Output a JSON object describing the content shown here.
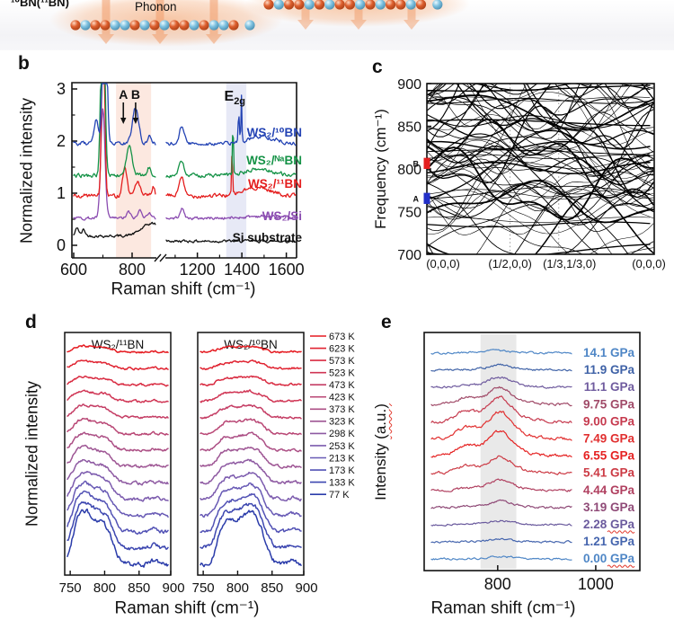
{
  "figure": {
    "panel_labels": {
      "b": "b",
      "c": "c",
      "d": "d",
      "e": "e"
    },
    "schematic": {
      "corner_label": "¹⁰BN(¹¹BN)",
      "phonon_label": "Phonon",
      "atom_colors": {
        "orange": "#dd5f2e",
        "blue": "#7fc2e0"
      },
      "arrow_color": "#f29e6c",
      "glow_color": "#f6aa76",
      "left_chain_pattern": [
        "o",
        "b",
        "o",
        "o",
        "b",
        "b",
        "o",
        "b",
        "o",
        "b",
        "o",
        "o",
        "b",
        "o",
        "b",
        "b",
        "o",
        "b"
      ],
      "right_chain_pattern": [
        "o",
        "b",
        "o",
        "o",
        "b",
        "o",
        "b",
        "o",
        "o",
        "b",
        "o",
        "b",
        "o",
        "o",
        "b",
        "o",
        "b"
      ]
    }
  },
  "chart_data": [
    {
      "id": "b",
      "type": "line",
      "xlabel": "Raman shift (cm⁻¹)",
      "ylabel": "Normalized intensity",
      "yticks": [
        0,
        1,
        2,
        3
      ],
      "xticks_seg1": [
        600,
        800
      ],
      "xticks_seg2": [
        1200,
        1400,
        1600
      ],
      "minor_xticks_seg1": [
        700
      ],
      "minor_xticks_seg2": [
        1100,
        1300,
        1500
      ],
      "xlim_seg1": [
        600,
        880
      ],
      "xlim_seg2": [
        1060,
        1646
      ],
      "ylim": [
        -0.3,
        3.12
      ],
      "axis_break": true,
      "shaded_bands": [
        {
          "range": [
            745,
            865
          ],
          "color": "rgba(246,180,152,0.30)"
        },
        {
          "range": [
            1330,
            1420
          ],
          "color": "rgba(185,192,228,0.35)"
        }
      ],
      "annotations": {
        "a_label": "A",
        "a_x": 770,
        "b_label": "B",
        "b_x": 812,
        "e2g_base": "E",
        "e2g_sub": "2g",
        "e2g_x": 1345
      },
      "series": [
        {
          "name": "Si substrate",
          "color": "#111111",
          "offset": 0.18,
          "offset_seg2": 0.08,
          "noise": 0.02,
          "peaks": [
            [
              612,
              8,
              0.16
            ],
            [
              634,
              8,
              0.12
            ],
            [
              870,
              50,
              0.24
            ]
          ]
        },
        {
          "name": "WS₂/Si",
          "color": "#8a4bb0",
          "offset": 0.52,
          "offset_seg2": 0.52,
          "noise": 0.022,
          "peaks": [
            [
              700,
              10,
              2.1
            ],
            [
              788,
              9,
              0.12
            ],
            [
              828,
              10,
              0.16
            ],
            [
              858,
              8,
              0.12
            ],
            [
              1130,
              14,
              0.18
            ],
            [
              1480,
              90,
              0.04
            ]
          ]
        },
        {
          "name": "WS₂/¹¹BN",
          "color": "#e41d1d",
          "offset": 0.95,
          "offset_seg2": 0.95,
          "noise": 0.03,
          "peaks": [
            [
              701,
              7,
              4
            ],
            [
              775,
              11,
              0.55
            ],
            [
              818,
              12,
              0.28
            ],
            [
              872,
              7,
              0.16
            ],
            [
              1128,
              15,
              0.37
            ],
            [
              1356,
              3,
              0.88
            ],
            [
              1470,
              85,
              0.16
            ]
          ]
        },
        {
          "name": "WS₂/ᴺᵃBN",
          "color": "#149246",
          "offset": 1.34,
          "offset_seg2": 1.34,
          "noise": 0.028,
          "peaks": [
            [
              700,
              9,
              4
            ],
            [
              790,
              14,
              0.55
            ],
            [
              858,
              7,
              0.15
            ],
            [
              1128,
              15,
              0.27
            ],
            [
              1360,
              3.2,
              1.0
            ],
            [
              1480,
              85,
              0.12
            ]
          ]
        },
        {
          "name": "WS₂/¹⁰BN",
          "color": "#2343b4",
          "offset": 1.95,
          "offset_seg2": 1.95,
          "noise": 0.028,
          "peaks": [
            [
              706,
              9,
              4
            ],
            [
              678,
              10,
              0.45
            ],
            [
              812,
              15,
              0.7
            ],
            [
              860,
              7,
              0.18
            ],
            [
              1130,
              15,
              0.36
            ],
            [
              1386,
              4,
              0.5
            ],
            [
              1398,
              2.8,
              0.9
            ],
            [
              1490,
              85,
              0.14
            ]
          ]
        }
      ]
    },
    {
      "id": "c",
      "type": "line",
      "ylabel": "Frequency (cm⁻¹)",
      "yticks": [
        700,
        750,
        800,
        850,
        900
      ],
      "ylim": [
        700,
        900
      ],
      "xtick_labels": [
        "(0,0,0)",
        "(1/2,0,0)",
        "(1/3,1/3,0)",
        "(0,0,0)"
      ],
      "grid_positions": [
        0.366,
        0.58
      ],
      "band_count": 58,
      "flat_band_count": 14,
      "line_color": "#000000",
      "markers": [
        {
          "label": "B",
          "color": "#e42020",
          "freq_range": [
            800,
            813
          ]
        },
        {
          "label": "A",
          "color": "#2330c8",
          "freq_range": [
            759,
            772
          ]
        }
      ]
    },
    {
      "id": "d",
      "type": "line",
      "ylabel": "Normalized intensity",
      "xlabel": "Raman shift (cm⁻¹)",
      "subpanels": [
        {
          "title": "WS₂/¹¹BN",
          "xticks": [
            750,
            800,
            850,
            900
          ],
          "xlim": [
            742,
            896
          ],
          "peak": {
            "rise": 753,
            "fall": 812,
            "extra": 768,
            "bump": 872
          }
        },
        {
          "title": "WS₂/¹⁰BN",
          "xticks": [
            750,
            800,
            850,
            900
          ],
          "xlim": [
            742,
            896
          ],
          "peak": {
            "rise": 770,
            "fall": 840,
            "extra": 820,
            "bump": 880
          }
        }
      ],
      "legend": [
        {
          "label": "673 K",
          "color": "#e51a20"
        },
        {
          "label": "623 K",
          "color": "#e02331"
        },
        {
          "label": "573 K",
          "color": "#d92c42"
        },
        {
          "label": "523 K",
          "color": "#d03554"
        },
        {
          "label": "473 K",
          "color": "#c53e65"
        },
        {
          "label": "423 K",
          "color": "#b94775"
        },
        {
          "label": "373 K",
          "color": "#ac4f85"
        },
        {
          "label": "323 K",
          "color": "#9e5694"
        },
        {
          "label": "298 K",
          "color": "#8e5aa2"
        },
        {
          "label": "253 K",
          "color": "#7c5bae"
        },
        {
          "label": "213 K",
          "color": "#685ab5"
        },
        {
          "label": "173 K",
          "color": "#5252b5"
        },
        {
          "label": "133 K",
          "color": "#3d47b0"
        },
        {
          "label": "77 K",
          "color": "#2b3caa"
        }
      ],
      "amplitudes": [
        6,
        7,
        8,
        10,
        12,
        14,
        16,
        19,
        22,
        26,
        31,
        37,
        44,
        52
      ]
    },
    {
      "id": "e",
      "type": "line",
      "ylabel_base": "Intensity ",
      "ylabel_unit": "(a.u.)",
      "xlabel": "Raman shift (cm⁻¹)",
      "xticks": [
        800,
        1000
      ],
      "xlim": [
        650,
        1090
      ],
      "shaded_band": {
        "range": [
          765,
          838
        ],
        "color": "rgba(120,120,120,0.16)"
      },
      "curves": [
        {
          "label_value": "14.1",
          "unit": "GPa",
          "color": "#4e86c6",
          "amp": 2,
          "squiggle": false
        },
        {
          "label_value": "11.9",
          "unit": "GPa",
          "color": "#3f62a7",
          "amp": 4,
          "squiggle": false
        },
        {
          "label_value": "11.1",
          "unit": "GPa",
          "color": "#6f5b9e",
          "amp": 8,
          "squiggle": false
        },
        {
          "label_value": "9.75",
          "unit": "GPa",
          "color": "#a04a68",
          "amp": 13,
          "squiggle": false
        },
        {
          "label_value": "9.00",
          "unit": "GPa",
          "color": "#c63a4e",
          "amp": 19,
          "squiggle": false
        },
        {
          "label_value": "7.49",
          "unit": "GPa",
          "color": "#e12f2f",
          "amp": 21,
          "squiggle": false
        },
        {
          "label_value": "6.55",
          "unit": "GPa",
          "color": "#e52222",
          "amp": 19,
          "squiggle": false
        },
        {
          "label_value": "5.41",
          "unit": "GPa",
          "color": "#cc3a44",
          "amp": 13,
          "squiggle": false
        },
        {
          "label_value": "4.44",
          "unit": "GPa",
          "color": "#b04060",
          "amp": 8,
          "squiggle": false
        },
        {
          "label_value": "3.19",
          "unit": "GPa",
          "color": "#8f4a77",
          "amp": 5,
          "squiggle": false
        },
        {
          "label_value": "2.28",
          "unit": "GPa",
          "color": "#6a5a9d",
          "amp": 3,
          "squiggle": true
        },
        {
          "label_value": "1.21",
          "unit": "GPa",
          "color": "#4565ae",
          "amp": 2,
          "squiggle": false
        },
        {
          "label_value": "0.00",
          "unit": "GPa",
          "color": "#4e86c6",
          "amp": 2,
          "squiggle": true
        }
      ]
    }
  ]
}
